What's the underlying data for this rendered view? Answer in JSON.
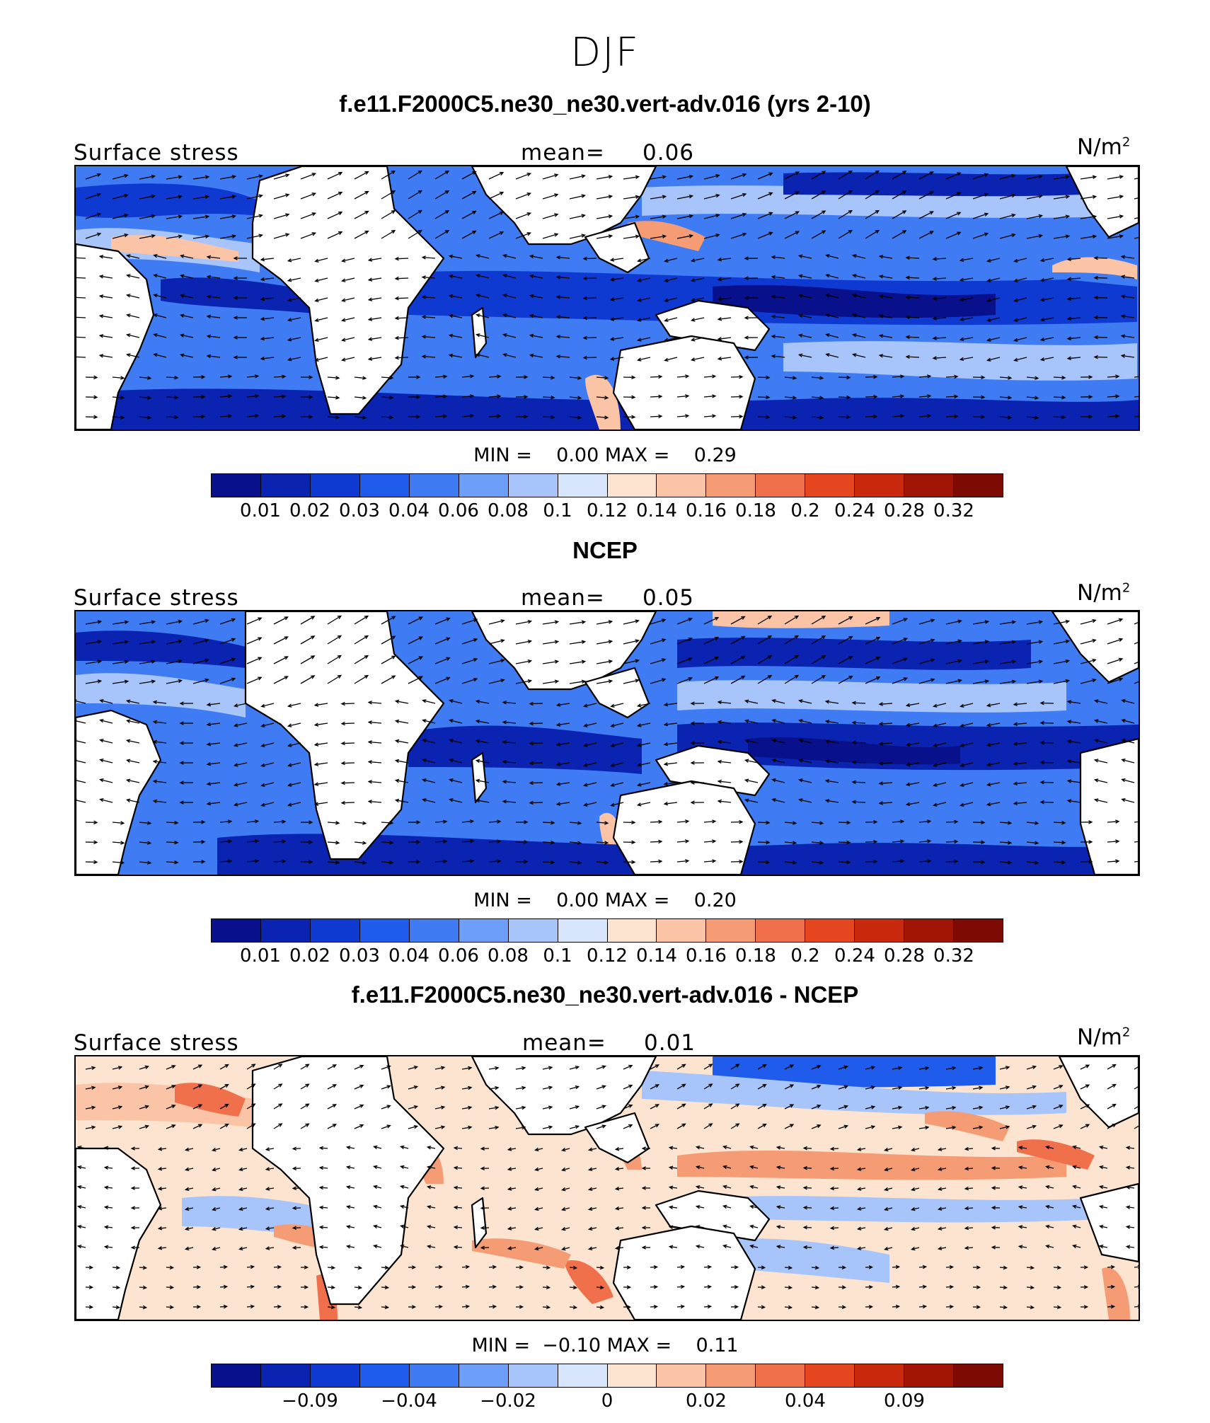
{
  "figure": {
    "season": "DJF"
  },
  "colors": [
    "#08108c",
    "#0a23b0",
    "#0f3ad2",
    "#1f5cec",
    "#3f7cf4",
    "#6e9ff8",
    "#a7c4fb",
    "#d8e6fd",
    "#fde4d0",
    "#fbc4a6",
    "#f69c74",
    "#f0704b",
    "#e4471f",
    "#c92a0e",
    "#a11507",
    "#7e0a04"
  ],
  "panels": [
    {
      "title": "f.e11.F2000C5.ne30_ne30.vert-adv.016 (yrs 2-10)",
      "variable": "Surface stress",
      "mean_label": "mean=",
      "mean_value": "0.06",
      "units_base": "N/m",
      "units_exp": "2",
      "min_label": "MIN =",
      "min_value": "0.00",
      "max_label": "MAX =",
      "max_value": "0.29",
      "colorbar_ticks": [
        "0.01",
        "0.02",
        "0.03",
        "0.04",
        "0.06",
        "0.08",
        "0.1",
        "0.12",
        "0.14",
        "0.16",
        "0.18",
        "0.2",
        "0.24",
        "0.28",
        "0.32"
      ]
    },
    {
      "title": "NCEP",
      "variable": "Surface stress",
      "mean_label": "mean=",
      "mean_value": "0.05",
      "units_base": "N/m",
      "units_exp": "2",
      "min_label": "MIN =",
      "min_value": "0.00",
      "max_label": "MAX =",
      "max_value": "0.20",
      "colorbar_ticks": [
        "0.01",
        "0.02",
        "0.03",
        "0.04",
        "0.06",
        "0.08",
        "0.1",
        "0.12",
        "0.14",
        "0.16",
        "0.18",
        "0.2",
        "0.24",
        "0.28",
        "0.32"
      ]
    },
    {
      "title": "f.e11.F2000C5.ne30_ne30.vert-adv.016 - NCEP",
      "variable": "Surface stress",
      "mean_label": "mean=",
      "mean_value": "0.01",
      "units_base": "N/m",
      "units_exp": "2",
      "min_label": "MIN =",
      "min_value": "−0.10",
      "max_label": "MAX =",
      "max_value": "0.11",
      "colorbar_ticks": [
        "−0.09",
        "−0.04",
        "−0.02",
        "0",
        "0.02",
        "0.04",
        "0.09"
      ]
    }
  ]
}
